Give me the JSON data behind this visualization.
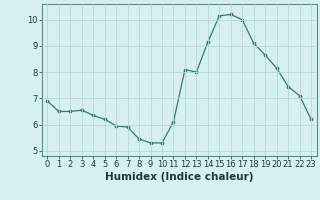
{
  "x": [
    0,
    1,
    2,
    3,
    4,
    5,
    6,
    7,
    8,
    9,
    10,
    11,
    12,
    13,
    14,
    15,
    16,
    17,
    18,
    19,
    20,
    21,
    22,
    23
  ],
  "y": [
    6.9,
    6.5,
    6.5,
    6.55,
    6.35,
    6.2,
    5.95,
    5.9,
    5.45,
    5.3,
    5.3,
    6.1,
    8.1,
    8.0,
    9.15,
    10.15,
    10.2,
    10.0,
    9.1,
    8.65,
    8.15,
    7.45,
    7.1,
    6.2
  ],
  "xlabel": "Humidex (Indice chaleur)",
  "ylim": [
    4.8,
    10.6
  ],
  "xlim": [
    -0.5,
    23.5
  ],
  "yticks": [
    5,
    6,
    7,
    8,
    9,
    10
  ],
  "xticks": [
    0,
    1,
    2,
    3,
    4,
    5,
    6,
    7,
    8,
    9,
    10,
    11,
    12,
    13,
    14,
    15,
    16,
    17,
    18,
    19,
    20,
    21,
    22,
    23
  ],
  "line_color": "#2e7d6e",
  "marker_color": "#2e7d6e",
  "bg_color": "#d6f0f0",
  "grid_color": "#b8d8d8",
  "tick_label_fontsize": 6.0,
  "xlabel_fontsize": 7.5
}
